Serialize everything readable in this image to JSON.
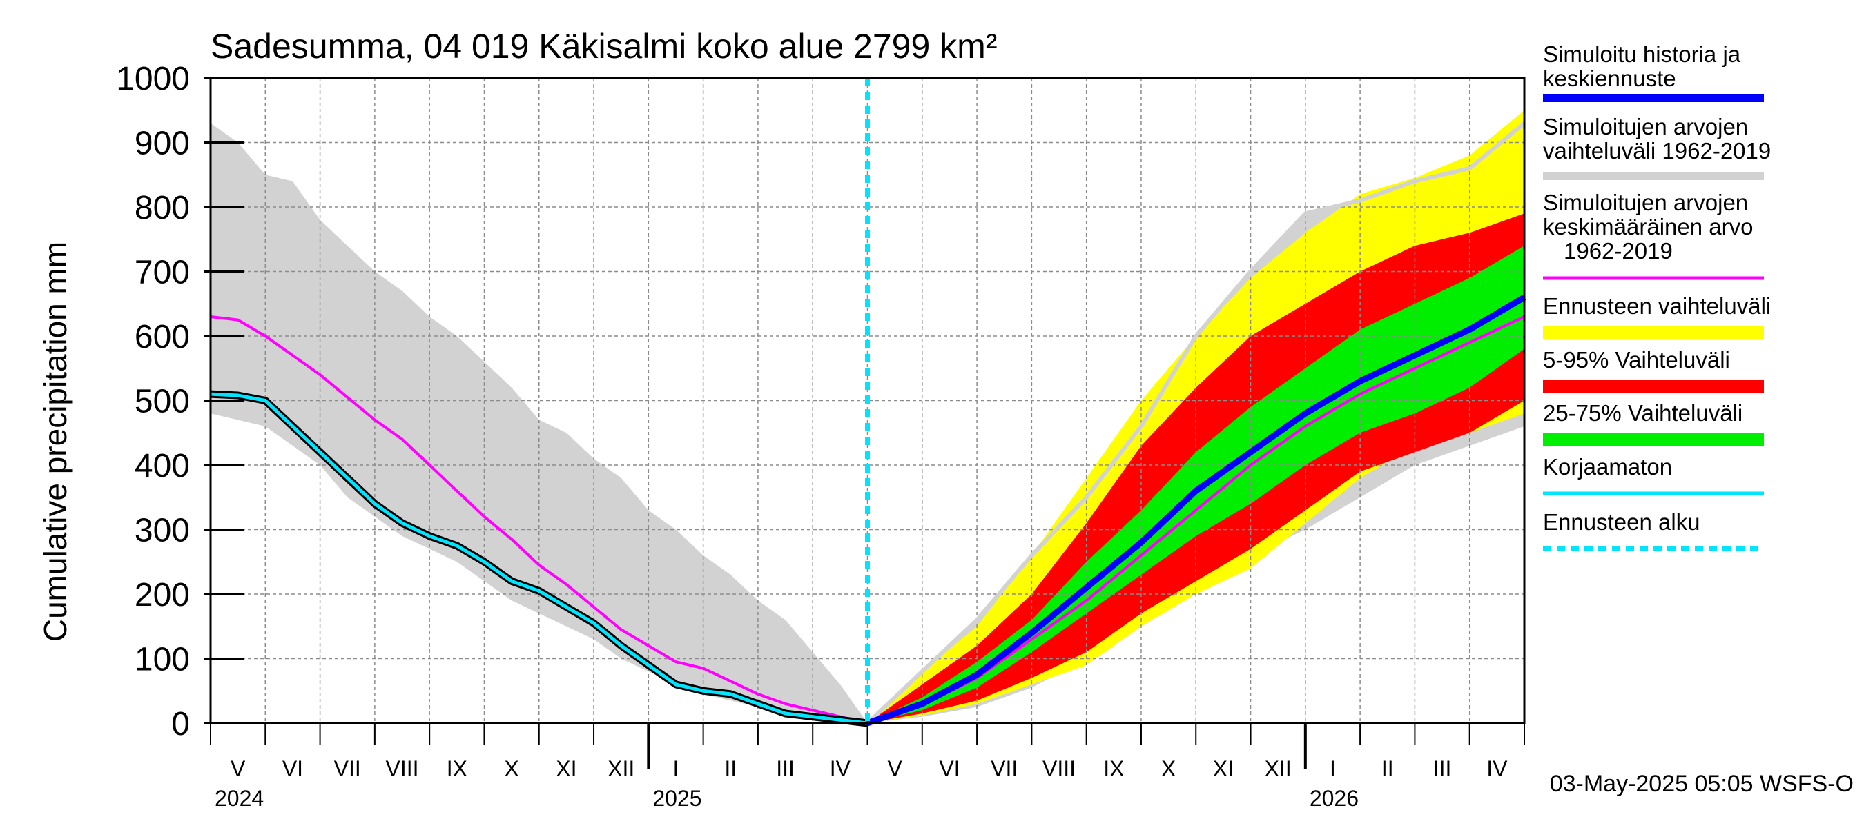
{
  "chart_data": {
    "type": "area",
    "title": "Sadesumma, 04 019 Käkisalmi koko alue 2799 km²",
    "ylabel": "Cumulative precipitation   mm",
    "xlabel": "",
    "ylim": [
      0,
      1000
    ],
    "yticks": [
      "0",
      "100",
      "200",
      "300",
      "400",
      "500",
      "600",
      "700",
      "800",
      "900",
      "1000"
    ],
    "months": [
      "V",
      "VI",
      "VII",
      "VIII",
      "IX",
      "X",
      "XI",
      "XII",
      "I",
      "II",
      "III",
      "IV",
      "V",
      "VI",
      "VII",
      "VIII",
      "IX",
      "X",
      "XI",
      "XII",
      "I",
      "II",
      "III",
      "IV"
    ],
    "years": [
      "2024",
      "2025",
      "2026"
    ],
    "forecast_start_month_index": 12,
    "footer": "03-May-2025 05:05 WSFS-O",
    "series_points": {
      "history_range_upper": [
        [
          0,
          930
        ],
        [
          0.5,
          900
        ],
        [
          1,
          850
        ],
        [
          1.5,
          840
        ],
        [
          2,
          780
        ],
        [
          2.5,
          740
        ],
        [
          3,
          700
        ],
        [
          3.5,
          670
        ],
        [
          4,
          630
        ],
        [
          4.5,
          600
        ],
        [
          5,
          560
        ],
        [
          5.5,
          520
        ],
        [
          6,
          470
        ],
        [
          6.5,
          450
        ],
        [
          7,
          410
        ],
        [
          7.5,
          380
        ],
        [
          8,
          330
        ],
        [
          8.5,
          300
        ],
        [
          9,
          260
        ],
        [
          9.5,
          230
        ],
        [
          10,
          190
        ],
        [
          10.5,
          160
        ],
        [
          11,
          110
        ],
        [
          11.5,
          60
        ],
        [
          12,
          0
        ]
      ],
      "history_range_lower": [
        [
          0,
          480
        ],
        [
          0.5,
          470
        ],
        [
          1,
          460
        ],
        [
          1.5,
          430
        ],
        [
          2,
          400
        ],
        [
          2.5,
          350
        ],
        [
          3,
          320
        ],
        [
          3.5,
          290
        ],
        [
          4,
          270
        ],
        [
          4.5,
          250
        ],
        [
          5,
          220
        ],
        [
          5.5,
          190
        ],
        [
          6,
          170
        ],
        [
          6.5,
          150
        ],
        [
          7,
          130
        ],
        [
          7.5,
          100
        ],
        [
          8,
          80
        ],
        [
          8.5,
          60
        ],
        [
          9,
          45
        ],
        [
          9.5,
          35
        ],
        [
          10,
          25
        ],
        [
          10.5,
          15
        ],
        [
          11,
          8
        ],
        [
          11.5,
          3
        ],
        [
          12,
          0
        ]
      ],
      "history_mean": [
        [
          0,
          630
        ],
        [
          0.5,
          625
        ],
        [
          1,
          600
        ],
        [
          1.5,
          570
        ],
        [
          2,
          540
        ],
        [
          2.5,
          505
        ],
        [
          3,
          470
        ],
        [
          3.5,
          440
        ],
        [
          4,
          400
        ],
        [
          4.5,
          360
        ],
        [
          5,
          320
        ],
        [
          5.5,
          285
        ],
        [
          6,
          245
        ],
        [
          6.5,
          215
        ],
        [
          7,
          180
        ],
        [
          7.5,
          145
        ],
        [
          8,
          120
        ],
        [
          8.5,
          95
        ],
        [
          9,
          85
        ],
        [
          9.5,
          65
        ],
        [
          10,
          45
        ],
        [
          10.5,
          30
        ],
        [
          11,
          20
        ],
        [
          11.5,
          10
        ],
        [
          12,
          0
        ]
      ],
      "history_simulated": [
        [
          0,
          510
        ],
        [
          0.5,
          508
        ],
        [
          1,
          500
        ],
        [
          1.5,
          460
        ],
        [
          2,
          420
        ],
        [
          2.5,
          380
        ],
        [
          3,
          340
        ],
        [
          3.5,
          310
        ],
        [
          4,
          290
        ],
        [
          4.5,
          275
        ],
        [
          5,
          250
        ],
        [
          5.5,
          220
        ],
        [
          6,
          205
        ],
        [
          6.5,
          180
        ],
        [
          7,
          155
        ],
        [
          7.5,
          120
        ],
        [
          8,
          90
        ],
        [
          8.5,
          60
        ],
        [
          9,
          50
        ],
        [
          9.5,
          45
        ],
        [
          10,
          30
        ],
        [
          10.5,
          15
        ],
        [
          11,
          10
        ],
        [
          11.5,
          5
        ],
        [
          12,
          0
        ]
      ],
      "forecast_ensemble_max": [
        [
          12,
          0
        ],
        [
          13,
          80
        ],
        [
          14,
          150
        ],
        [
          15,
          260
        ],
        [
          16,
          380
        ],
        [
          17,
          500
        ],
        [
          18,
          600
        ],
        [
          19,
          690
        ],
        [
          20,
          760
        ],
        [
          21,
          820
        ],
        [
          22,
          845
        ],
        [
          23,
          880
        ],
        [
          24,
          950
        ]
      ],
      "forecast_p95": [
        [
          12,
          0
        ],
        [
          13,
          60
        ],
        [
          14,
          120
        ],
        [
          15,
          200
        ],
        [
          16,
          310
        ],
        [
          17,
          430
        ],
        [
          18,
          520
        ],
        [
          19,
          600
        ],
        [
          20,
          650
        ],
        [
          21,
          700
        ],
        [
          22,
          740
        ],
        [
          23,
          760
        ],
        [
          24,
          790
        ]
      ],
      "forecast_p75": [
        [
          12,
          0
        ],
        [
          13,
          40
        ],
        [
          14,
          95
        ],
        [
          15,
          160
        ],
        [
          16,
          250
        ],
        [
          17,
          330
        ],
        [
          18,
          420
        ],
        [
          19,
          490
        ],
        [
          20,
          550
        ],
        [
          21,
          610
        ],
        [
          22,
          650
        ],
        [
          23,
          690
        ],
        [
          24,
          740
        ]
      ],
      "forecast_median": [
        [
          12,
          0
        ],
        [
          13,
          30
        ],
        [
          14,
          75
        ],
        [
          15,
          140
        ],
        [
          16,
          210
        ],
        [
          17,
          280
        ],
        [
          18,
          360
        ],
        [
          19,
          420
        ],
        [
          20,
          480
        ],
        [
          21,
          530
        ],
        [
          22,
          570
        ],
        [
          23,
          610
        ],
        [
          24,
          660
        ]
      ],
      "forecast_p25": [
        [
          12,
          0
        ],
        [
          13,
          20
        ],
        [
          14,
          55
        ],
        [
          15,
          110
        ],
        [
          16,
          170
        ],
        [
          17,
          230
        ],
        [
          18,
          290
        ],
        [
          19,
          340
        ],
        [
          20,
          400
        ],
        [
          21,
          450
        ],
        [
          22,
          480
        ],
        [
          23,
          520
        ],
        [
          24,
          580
        ]
      ],
      "forecast_p5": [
        [
          12,
          0
        ],
        [
          13,
          15
        ],
        [
          14,
          35
        ],
        [
          15,
          70
        ],
        [
          16,
          110
        ],
        [
          17,
          170
        ],
        [
          18,
          220
        ],
        [
          19,
          270
        ],
        [
          20,
          330
        ],
        [
          21,
          390
        ],
        [
          22,
          420
        ],
        [
          23,
          450
        ],
        [
          24,
          500
        ]
      ],
      "forecast_ensemble_min": [
        [
          12,
          0
        ],
        [
          13,
          12
        ],
        [
          14,
          30
        ],
        [
          15,
          60
        ],
        [
          16,
          90
        ],
        [
          17,
          150
        ],
        [
          18,
          200
        ],
        [
          19,
          240
        ],
        [
          20,
          310
        ],
        [
          21,
          380
        ],
        [
          22,
          430
        ],
        [
          23,
          450
        ],
        [
          24,
          480
        ]
      ],
      "forecast_history_max": [
        [
          12,
          0
        ],
        [
          13,
          80
        ],
        [
          14,
          160
        ],
        [
          15,
          260
        ],
        [
          16,
          350
        ],
        [
          17,
          460
        ],
        [
          18,
          600
        ],
        [
          19,
          700
        ],
        [
          20,
          790
        ],
        [
          21,
          810
        ],
        [
          22,
          840
        ],
        [
          23,
          860
        ],
        [
          24,
          930
        ]
      ],
      "forecast_history_min": [
        [
          12,
          0
        ],
        [
          13,
          10
        ],
        [
          14,
          25
        ],
        [
          15,
          55
        ],
        [
          16,
          100
        ],
        [
          17,
          160
        ],
        [
          18,
          210
        ],
        [
          19,
          260
        ],
        [
          20,
          300
        ],
        [
          21,
          350
        ],
        [
          22,
          400
        ],
        [
          23,
          430
        ],
        [
          24,
          460
        ]
      ],
      "forecast_history_mean": [
        [
          12,
          0
        ],
        [
          13,
          28
        ],
        [
          14,
          70
        ],
        [
          15,
          130
        ],
        [
          16,
          190
        ],
        [
          17,
          260
        ],
        [
          18,
          330
        ],
        [
          19,
          400
        ],
        [
          20,
          460
        ],
        [
          21,
          510
        ],
        [
          22,
          550
        ],
        [
          23,
          590
        ],
        [
          24,
          630
        ]
      ]
    },
    "legend": [
      {
        "label": "Simuloitu historia ja keskiennuste",
        "color": "#0000ff",
        "style": "thick"
      },
      {
        "label": "Simuloitujen arvojen vaihteluväli 1962-2019",
        "color": "#d2d2d2",
        "style": "thick"
      },
      {
        "label": "Simuloitujen arvojen keskimääräinen arvo  1962-2019",
        "color": "#ff00ff",
        "style": "line"
      },
      {
        "label": "Ennusteen vaihteluväli",
        "color": "#ffff00",
        "style": "band"
      },
      {
        "label": "5-95% Vaihteluväli",
        "color": "#ff0000",
        "style": "band"
      },
      {
        "label": "25-75% Vaihteluväli",
        "color": "#00ee00",
        "style": "band"
      },
      {
        "label": "Korjaamaton",
        "color": "#00e5ff",
        "style": "line"
      },
      {
        "label": "Ennusteen alku",
        "color": "#00e5ff",
        "style": "dashed"
      }
    ]
  },
  "colors": {
    "history_band": "#d2d2d2",
    "ensemble_band": "#ffff00",
    "band_5_95": "#ff0000",
    "band_25_75": "#00ee00",
    "mean": "#ff00ff",
    "simulated": "#0000ff",
    "uncorrected": "#00e5ff",
    "forecast_start": "#00e5ff",
    "grid": "#8c8c8c"
  }
}
